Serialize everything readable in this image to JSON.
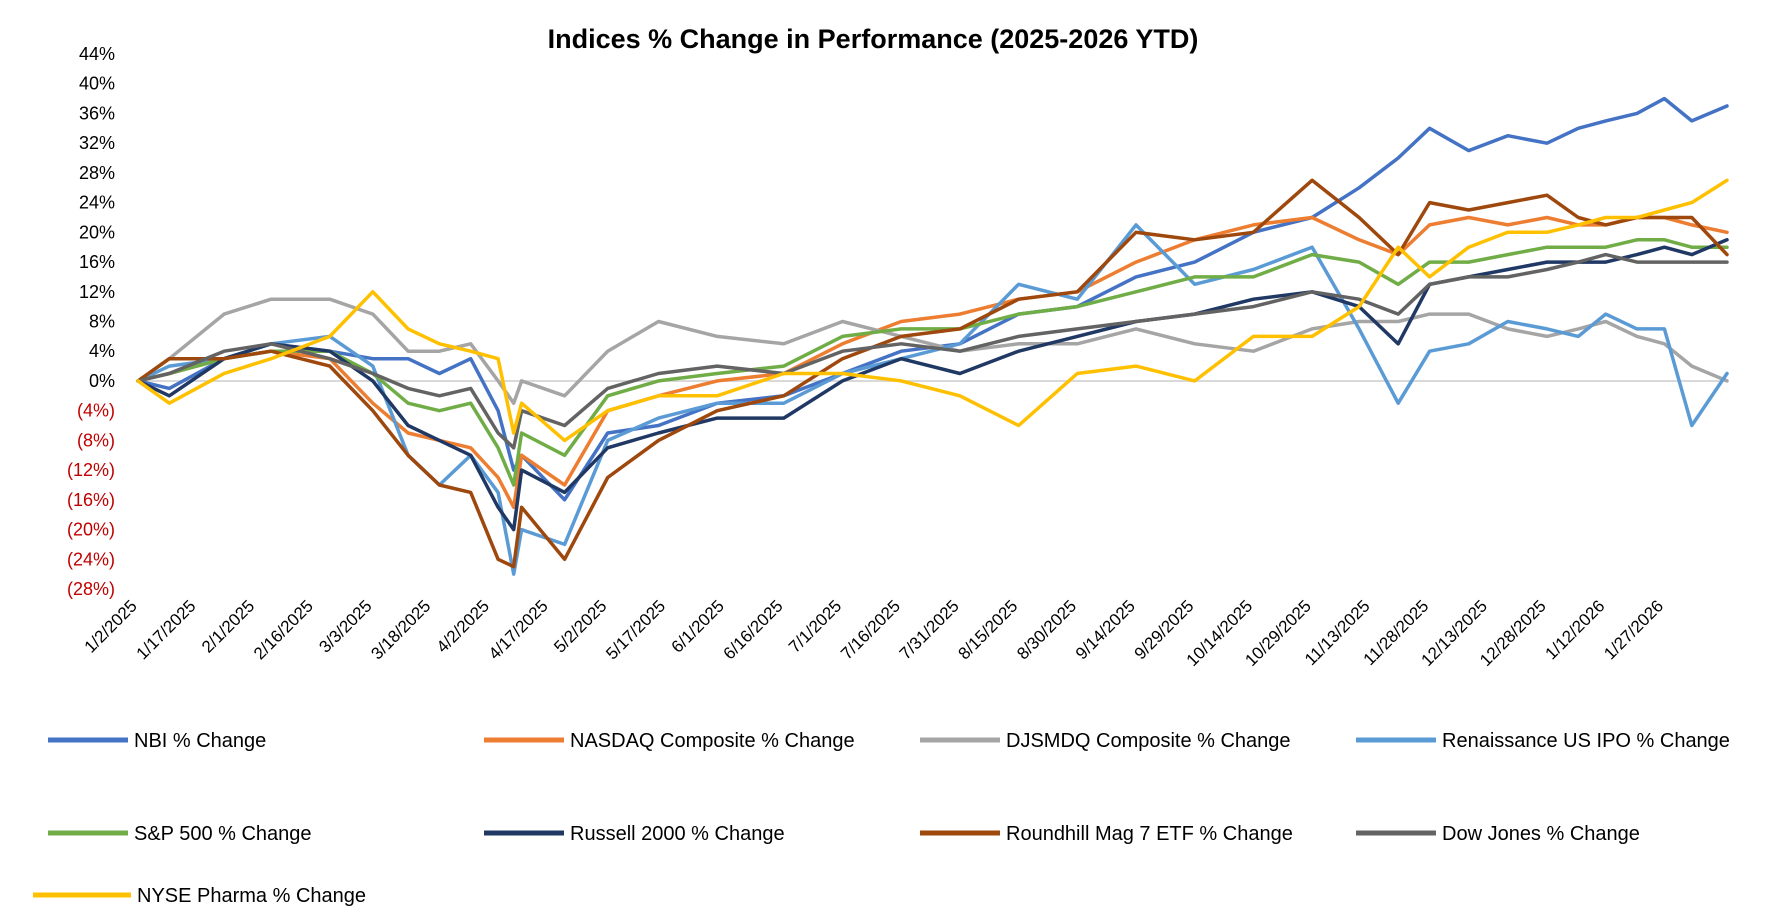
{
  "chart_data": {
    "type": "line",
    "title": "Indices % Change in Performance (2025-2026 YTD)",
    "xlabel": "",
    "ylabel": "",
    "ylim": [
      -28,
      44
    ],
    "y_ticks": [
      {
        "value": 44,
        "label": "44%"
      },
      {
        "value": 40,
        "label": "40%"
      },
      {
        "value": 36,
        "label": "36%"
      },
      {
        "value": 32,
        "label": "32%"
      },
      {
        "value": 28,
        "label": "28%"
      },
      {
        "value": 24,
        "label": "24%"
      },
      {
        "value": 20,
        "label": "20%"
      },
      {
        "value": 16,
        "label": "16%"
      },
      {
        "value": 12,
        "label": "12%"
      },
      {
        "value": 8,
        "label": "8%"
      },
      {
        "value": 4,
        "label": "4%"
      },
      {
        "value": 0,
        "label": "0%"
      },
      {
        "value": -4,
        "label": "(4%)"
      },
      {
        "value": -8,
        "label": "(8%)"
      },
      {
        "value": -12,
        "label": "(12%)"
      },
      {
        "value": -16,
        "label": "(16%)"
      },
      {
        "value": -20,
        "label": "(20%)"
      },
      {
        "value": -24,
        "label": "(24%)"
      },
      {
        "value": -28,
        "label": "(28%)"
      }
    ],
    "negative_label_color": "#c00000",
    "x_ticks": [
      "1/2/2025",
      "1/17/2025",
      "2/1/2025",
      "2/16/2025",
      "3/3/2025",
      "3/18/2025",
      "4/2/2025",
      "4/17/2025",
      "5/2/2025",
      "5/17/2025",
      "6/1/2025",
      "6/16/2025",
      "7/1/2025",
      "7/16/2025",
      "7/31/2025",
      "8/15/2025",
      "8/30/2025",
      "9/14/2025",
      "9/29/2025",
      "10/14/2025",
      "10/29/2025",
      "11/13/2025",
      "11/28/2025",
      "12/13/2025",
      "12/28/2025",
      "1/12/2026",
      "1/27/2026"
    ],
    "x_range": [
      "1/2/2025",
      "2/12/2026"
    ],
    "zero_line": true,
    "grid": false,
    "legend_position": "bottom",
    "series": [
      {
        "name": "NBI % Change",
        "color": "#4472c4",
        "x": [
          "1/2/2025",
          "1/10/2025",
          "1/24/2025",
          "2/5/2025",
          "2/20/2025",
          "3/3/2025",
          "3/12/2025",
          "3/20/2025",
          "3/28/2025",
          "4/4/2025",
          "4/8/2025",
          "4/10/2025",
          "4/21/2025",
          "5/2/2025",
          "5/15/2025",
          "5/30/2025",
          "6/16/2025",
          "7/1/2025",
          "7/16/2025",
          "7/31/2025",
          "8/15/2025",
          "8/30/2025",
          "9/14/2025",
          "9/29/2025",
          "10/14/2025",
          "10/29/2025",
          "11/10/2025",
          "11/20/2025",
          "11/28/2025",
          "12/8/2025",
          "12/18/2025",
          "12/28/2025",
          "1/5/2026",
          "1/12/2026",
          "1/20/2026",
          "1/27/2026",
          "2/3/2026",
          "2/12/2026"
        ],
        "values": [
          0,
          -1,
          3,
          5,
          4,
          3,
          3,
          1,
          3,
          -4,
          -12,
          -10,
          -16,
          -7,
          -6,
          -3,
          -2,
          1,
          4,
          5,
          9,
          10,
          14,
          16,
          20,
          22,
          26,
          30,
          34,
          31,
          33,
          32,
          34,
          35,
          36,
          38,
          35,
          37
        ]
      },
      {
        "name": "NASDAQ Composite % Change",
        "color": "#ed7d31",
        "x": [
          "1/2/2025",
          "1/10/2025",
          "1/24/2025",
          "2/5/2025",
          "2/20/2025",
          "3/3/2025",
          "3/12/2025",
          "3/20/2025",
          "3/28/2025",
          "4/4/2025",
          "4/8/2025",
          "4/10/2025",
          "4/21/2025",
          "5/2/2025",
          "5/15/2025",
          "5/30/2025",
          "6/16/2025",
          "7/1/2025",
          "7/16/2025",
          "7/31/2025",
          "8/15/2025",
          "8/30/2025",
          "9/14/2025",
          "9/29/2025",
          "10/14/2025",
          "10/29/2025",
          "11/10/2025",
          "11/20/2025",
          "11/28/2025",
          "12/8/2025",
          "12/18/2025",
          "12/28/2025",
          "1/5/2026",
          "1/12/2026",
          "1/20/2026",
          "1/27/2026",
          "2/3/2026",
          "2/12/2026"
        ],
        "values": [
          0,
          1,
          3,
          4,
          3,
          -3,
          -7,
          -8,
          -9,
          -13,
          -17,
          -10,
          -14,
          -4,
          -2,
          0,
          1,
          5,
          8,
          9,
          11,
          12,
          16,
          19,
          21,
          22,
          19,
          17,
          21,
          22,
          21,
          22,
          21,
          21,
          22,
          22,
          21,
          20
        ]
      },
      {
        "name": "DJSMDQ Composite % Change",
        "color": "#a5a5a5",
        "x": [
          "1/2/2025",
          "1/10/2025",
          "1/24/2025",
          "2/5/2025",
          "2/20/2025",
          "3/3/2025",
          "3/12/2025",
          "3/20/2025",
          "3/28/2025",
          "4/4/2025",
          "4/8/2025",
          "4/10/2025",
          "4/21/2025",
          "5/2/2025",
          "5/15/2025",
          "5/30/2025",
          "6/16/2025",
          "7/1/2025",
          "7/16/2025",
          "7/31/2025",
          "8/15/2025",
          "8/30/2025",
          "9/14/2025",
          "9/29/2025",
          "10/14/2025",
          "10/29/2025",
          "11/10/2025",
          "11/20/2025",
          "11/28/2025",
          "12/8/2025",
          "12/18/2025",
          "12/28/2025",
          "1/5/2026",
          "1/12/2026",
          "1/20/2026",
          "1/27/2026",
          "2/3/2026",
          "2/12/2026"
        ],
        "values": [
          0,
          3,
          9,
          11,
          11,
          9,
          4,
          4,
          5,
          0,
          -3,
          0,
          -2,
          4,
          8,
          6,
          5,
          8,
          6,
          4,
          5,
          5,
          7,
          5,
          4,
          7,
          8,
          8,
          9,
          9,
          7,
          6,
          7,
          8,
          6,
          5,
          2,
          0
        ]
      },
      {
        "name": "Renaissance US IPO % Change",
        "color": "#5b9bd5",
        "x": [
          "1/2/2025",
          "1/10/2025",
          "1/24/2025",
          "2/5/2025",
          "2/20/2025",
          "3/3/2025",
          "3/12/2025",
          "3/20/2025",
          "3/28/2025",
          "4/4/2025",
          "4/8/2025",
          "4/10/2025",
          "4/21/2025",
          "5/2/2025",
          "5/15/2025",
          "5/30/2025",
          "6/16/2025",
          "7/1/2025",
          "7/16/2025",
          "7/31/2025",
          "8/15/2025",
          "8/30/2025",
          "9/14/2025",
          "9/29/2025",
          "10/14/2025",
          "10/29/2025",
          "11/10/2025",
          "11/20/2025",
          "11/28/2025",
          "12/8/2025",
          "12/18/2025",
          "12/28/2025",
          "1/5/2026",
          "1/12/2026",
          "1/20/2026",
          "1/27/2026",
          "2/3/2026",
          "2/12/2026"
        ],
        "values": [
          0,
          2,
          3,
          5,
          6,
          2,
          -10,
          -14,
          -10,
          -15,
          -26,
          -20,
          -22,
          -8,
          -5,
          -3,
          -3,
          1,
          3,
          5,
          13,
          11,
          21,
          13,
          15,
          18,
          7,
          -3,
          4,
          5,
          8,
          7,
          6,
          9,
          7,
          7,
          -6,
          1
        ]
      },
      {
        "name": "S&P 500 % Change",
        "color": "#70ad47",
        "x": [
          "1/2/2025",
          "1/10/2025",
          "1/24/2025",
          "2/5/2025",
          "2/20/2025",
          "3/3/2025",
          "3/12/2025",
          "3/20/2025",
          "3/28/2025",
          "4/4/2025",
          "4/8/2025",
          "4/10/2025",
          "4/21/2025",
          "5/2/2025",
          "5/15/2025",
          "5/30/2025",
          "6/16/2025",
          "7/1/2025",
          "7/16/2025",
          "7/31/2025",
          "8/15/2025",
          "8/30/2025",
          "9/14/2025",
          "9/29/2025",
          "10/14/2025",
          "10/29/2025",
          "11/10/2025",
          "11/20/2025",
          "11/28/2025",
          "12/8/2025",
          "12/18/2025",
          "12/28/2025",
          "1/5/2026",
          "1/12/2026",
          "1/20/2026",
          "1/27/2026",
          "2/3/2026",
          "2/12/2026"
        ],
        "values": [
          0,
          1,
          3,
          4,
          4,
          1,
          -3,
          -4,
          -3,
          -9,
          -14,
          -7,
          -10,
          -2,
          0,
          1,
          2,
          6,
          7,
          7,
          9,
          10,
          12,
          14,
          14,
          17,
          16,
          13,
          16,
          16,
          17,
          18,
          18,
          18,
          19,
          19,
          18,
          18
        ]
      },
      {
        "name": "Russell 2000 % Change",
        "color": "#203864",
        "x": [
          "1/2/2025",
          "1/10/2025",
          "1/24/2025",
          "2/5/2025",
          "2/20/2025",
          "3/3/2025",
          "3/12/2025",
          "3/20/2025",
          "3/28/2025",
          "4/4/2025",
          "4/8/2025",
          "4/10/2025",
          "4/21/2025",
          "5/2/2025",
          "5/15/2025",
          "5/30/2025",
          "6/16/2025",
          "7/1/2025",
          "7/16/2025",
          "7/31/2025",
          "8/15/2025",
          "8/30/2025",
          "9/14/2025",
          "9/29/2025",
          "10/14/2025",
          "10/29/2025",
          "11/10/2025",
          "11/20/2025",
          "11/28/2025",
          "12/8/2025",
          "12/18/2025",
          "12/28/2025",
          "1/5/2026",
          "1/12/2026",
          "1/20/2026",
          "1/27/2026",
          "2/3/2026",
          "2/12/2026"
        ],
        "values": [
          0,
          -2,
          3,
          5,
          4,
          0,
          -6,
          -8,
          -10,
          -17,
          -20,
          -12,
          -15,
          -9,
          -7,
          -5,
          -5,
          0,
          3,
          1,
          4,
          6,
          8,
          9,
          11,
          12,
          10,
          5,
          13,
          14,
          15,
          16,
          16,
          16,
          17,
          18,
          17,
          19
        ]
      },
      {
        "name": "Roundhill Mag 7 ETF % Change",
        "color": "#9e480e",
        "x": [
          "1/2/2025",
          "1/10/2025",
          "1/24/2025",
          "2/5/2025",
          "2/20/2025",
          "3/3/2025",
          "3/12/2025",
          "3/20/2025",
          "3/28/2025",
          "4/4/2025",
          "4/8/2025",
          "4/10/2025",
          "4/21/2025",
          "5/2/2025",
          "5/15/2025",
          "5/30/2025",
          "6/16/2025",
          "7/1/2025",
          "7/16/2025",
          "7/31/2025",
          "8/15/2025",
          "8/30/2025",
          "9/14/2025",
          "9/29/2025",
          "10/14/2025",
          "10/29/2025",
          "11/10/2025",
          "11/20/2025",
          "11/28/2025",
          "12/8/2025",
          "12/18/2025",
          "12/28/2025",
          "1/5/2026",
          "1/12/2026",
          "1/20/2026",
          "1/27/2026",
          "2/3/2026",
          "2/12/2026"
        ],
        "values": [
          0,
          3,
          3,
          4,
          2,
          -4,
          -10,
          -14,
          -15,
          -24,
          -25,
          -17,
          -24,
          -13,
          -8,
          -4,
          -2,
          3,
          6,
          7,
          11,
          12,
          20,
          19,
          20,
          27,
          22,
          17,
          24,
          23,
          24,
          25,
          22,
          21,
          22,
          22,
          22,
          17
        ]
      },
      {
        "name": "Dow Jones % Change",
        "color": "#636363",
        "x": [
          "1/2/2025",
          "1/10/2025",
          "1/24/2025",
          "2/5/2025",
          "2/20/2025",
          "3/3/2025",
          "3/12/2025",
          "3/20/2025",
          "3/28/2025",
          "4/4/2025",
          "4/8/2025",
          "4/10/2025",
          "4/21/2025",
          "5/2/2025",
          "5/15/2025",
          "5/30/2025",
          "6/16/2025",
          "7/1/2025",
          "7/16/2025",
          "7/31/2025",
          "8/15/2025",
          "8/30/2025",
          "9/14/2025",
          "9/29/2025",
          "10/14/2025",
          "10/29/2025",
          "11/10/2025",
          "11/20/2025",
          "11/28/2025",
          "12/8/2025",
          "12/18/2025",
          "12/28/2025",
          "1/5/2026",
          "1/12/2026",
          "1/20/2026",
          "1/27/2026",
          "2/3/2026",
          "2/12/2026"
        ],
        "values": [
          0,
          1,
          4,
          5,
          3,
          1,
          -1,
          -2,
          -1,
          -7,
          -9,
          -4,
          -6,
          -1,
          1,
          2,
          1,
          4,
          5,
          4,
          6,
          7,
          8,
          9,
          10,
          12,
          11,
          9,
          13,
          14,
          14,
          15,
          16,
          17,
          16,
          16,
          16,
          16
        ]
      },
      {
        "name": "NYSE Pharma % Change",
        "color": "#ffc000",
        "x": [
          "1/2/2025",
          "1/10/2025",
          "1/24/2025",
          "2/5/2025",
          "2/20/2025",
          "3/3/2025",
          "3/12/2025",
          "3/20/2025",
          "3/28/2025",
          "4/4/2025",
          "4/8/2025",
          "4/10/2025",
          "4/21/2025",
          "5/2/2025",
          "5/15/2025",
          "5/30/2025",
          "6/16/2025",
          "7/1/2025",
          "7/16/2025",
          "7/31/2025",
          "8/15/2025",
          "8/30/2025",
          "9/14/2025",
          "9/29/2025",
          "10/14/2025",
          "10/29/2025",
          "11/10/2025",
          "11/20/2025",
          "11/28/2025",
          "12/8/2025",
          "12/18/2025",
          "12/28/2025",
          "1/5/2026",
          "1/12/2026",
          "1/20/2026",
          "1/27/2026",
          "2/3/2026",
          "2/12/2026"
        ],
        "values": [
          0,
          -3,
          1,
          3,
          6,
          12,
          7,
          5,
          4,
          3,
          -7,
          -3,
          -8,
          -4,
          -2,
          -2,
          1,
          1,
          0,
          -2,
          -6,
          1,
          2,
          0,
          6,
          6,
          10,
          18,
          14,
          18,
          20,
          20,
          21,
          22,
          22,
          23,
          24,
          27
        ]
      }
    ]
  }
}
